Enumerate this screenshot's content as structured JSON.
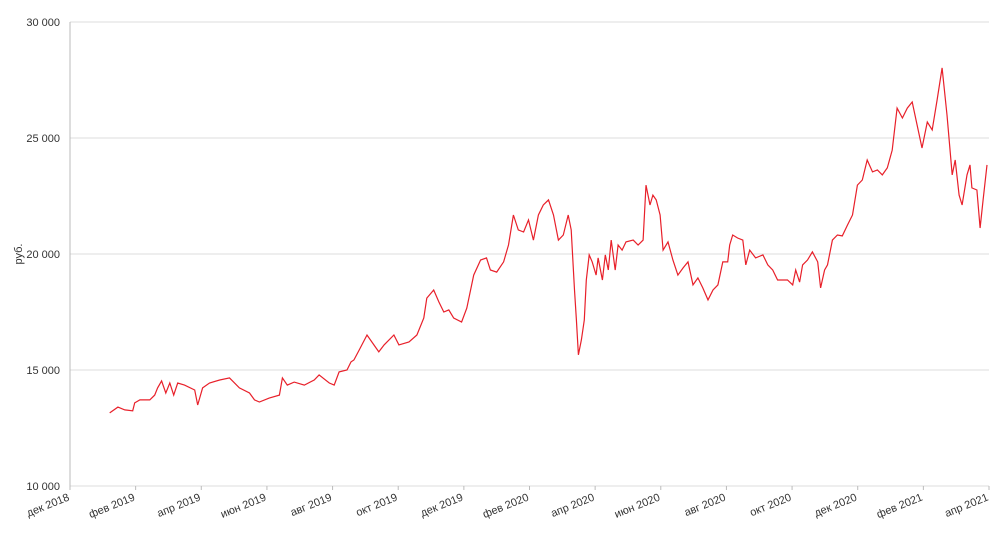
{
  "chart_data": {
    "type": "line",
    "ylabel": "руб.",
    "x": [
      1.21,
      1.46,
      1.67,
      1.91,
      1.97,
      2.13,
      2.43,
      2.58,
      2.67,
      2.79,
      2.92,
      3.04,
      3.16,
      3.28,
      3.49,
      3.8,
      3.89,
      4.04,
      4.25,
      4.56,
      4.86,
      5.16,
      5.47,
      5.62,
      5.77,
      6.07,
      6.38,
      6.47,
      6.62,
      6.83,
      7.14,
      7.44,
      7.59,
      7.9,
      8.05,
      8.2,
      8.44,
      8.56,
      8.65,
      8.81,
      9.05,
      9.26,
      9.41,
      9.57,
      9.87,
      10.02,
      10.33,
      10.57,
      10.78,
      10.87,
      11.08,
      11.24,
      11.39,
      11.54,
      11.69,
      11.93,
      12.09,
      12.3,
      12.51,
      12.69,
      12.81,
      13.0,
      13.21,
      13.36,
      13.51,
      13.66,
      13.82,
      13.97,
      14.12,
      14.27,
      14.42,
      14.58,
      14.73,
      14.88,
      15.03,
      15.18,
      15.27,
      15.37,
      15.43,
      15.49,
      15.58,
      15.67,
      15.73,
      15.82,
      15.91,
      16.03,
      16.09,
      16.22,
      16.31,
      16.4,
      16.49,
      16.61,
      16.7,
      16.82,
      16.94,
      17.16,
      17.31,
      17.46,
      17.55,
      17.67,
      17.76,
      17.86,
      17.98,
      18.07,
      18.22,
      18.37,
      18.52,
      18.68,
      18.83,
      18.98,
      19.13,
      19.28,
      19.44,
      19.59,
      19.74,
      19.89,
      20.04,
      20.1,
      20.19,
      20.34,
      20.5,
      20.59,
      20.71,
      20.89,
      21.11,
      21.26,
      21.41,
      21.56,
      21.86,
      22.02,
      22.11,
      22.23,
      22.32,
      22.47,
      22.62,
      22.78,
      22.87,
      22.99,
      23.08,
      23.23,
      23.38,
      23.53,
      23.69,
      23.84,
      23.99,
      24.14,
      24.29,
      24.45,
      24.6,
      24.75,
      24.9,
      25.05,
      25.2,
      25.36,
      25.51,
      25.66,
      25.81,
      25.96,
      26.12,
      26.27,
      26.42,
      26.57,
      26.72,
      26.88,
      26.97,
      27.09,
      27.18,
      27.33,
      27.42,
      27.48,
      27.63,
      27.73,
      27.82,
      27.94
    ],
    "series": [
      {
        "color": "#e8202a",
        "values": [
          13150,
          13400,
          13280,
          13240,
          13580,
          13710,
          13710,
          13920,
          14230,
          14530,
          14010,
          14440,
          13920,
          14440,
          14350,
          14140,
          13490,
          14230,
          14440,
          14570,
          14660,
          14230,
          14010,
          13710,
          13620,
          13790,
          13920,
          14660,
          14350,
          14480,
          14350,
          14570,
          14790,
          14440,
          14350,
          14920,
          15000,
          15350,
          15430,
          15860,
          16510,
          16080,
          15780,
          16080,
          16510,
          16080,
          16210,
          16510,
          17240,
          18100,
          18450,
          17930,
          17500,
          17590,
          17240,
          17070,
          17670,
          19090,
          19740,
          19830,
          19310,
          19220,
          19660,
          20390,
          21680,
          21040,
          20950,
          21470,
          20600,
          21680,
          22110,
          22330,
          21680,
          20600,
          20820,
          21680,
          21040,
          18450,
          17160,
          15650,
          16300,
          17160,
          18880,
          19960,
          19660,
          19090,
          19830,
          18880,
          19960,
          19310,
          20600,
          19310,
          20390,
          20170,
          20520,
          20600,
          20390,
          20600,
          22970,
          22110,
          22540,
          22330,
          21680,
          20170,
          20520,
          19740,
          19090,
          19400,
          19660,
          18670,
          18970,
          18540,
          18020,
          18450,
          18670,
          19660,
          19660,
          20390,
          20820,
          20690,
          20600,
          19530,
          20170,
          19830,
          19960,
          19530,
          19310,
          18880,
          18880,
          18670,
          19310,
          18790,
          19530,
          19740,
          20090,
          19660,
          18540,
          19310,
          19530,
          20600,
          20820,
          20780,
          21250,
          21680,
          22970,
          23190,
          24050,
          23540,
          23620,
          23410,
          23710,
          24480,
          26290,
          25860,
          26290,
          26550,
          25560,
          24570,
          25690,
          25350,
          26640,
          28020,
          25990,
          23410,
          24050,
          22540,
          22110,
          23410,
          23840,
          22850,
          22760,
          21120,
          22330,
          23840
        ]
      }
    ],
    "xlim": [
      0,
      28
    ],
    "xticks": [
      {
        "value": 0,
        "label": "дек 2018"
      },
      {
        "value": 2,
        "label": "фев 2019"
      },
      {
        "value": 4,
        "label": "апр 2019"
      },
      {
        "value": 6,
        "label": "июн 2019"
      },
      {
        "value": 8,
        "label": "авг 2019"
      },
      {
        "value": 10,
        "label": "окт 2019"
      },
      {
        "value": 12,
        "label": "дек 2019"
      },
      {
        "value": 14,
        "label": "фев 2020"
      },
      {
        "value": 16,
        "label": "апр 2020"
      },
      {
        "value": 18,
        "label": "июн 2020"
      },
      {
        "value": 20,
        "label": "авг 2020"
      },
      {
        "value": 22,
        "label": "окт 2020"
      },
      {
        "value": 24,
        "label": "дек 2020"
      },
      {
        "value": 26,
        "label": "фев 2021"
      },
      {
        "value": 28,
        "label": "апр 2021"
      }
    ],
    "ylim": [
      10000,
      30000
    ],
    "yticks": [
      {
        "value": 10000,
        "label": "10 000"
      },
      {
        "value": 15000,
        "label": "15 000"
      },
      {
        "value": 20000,
        "label": "20 000"
      },
      {
        "value": 25000,
        "label": "25 000"
      },
      {
        "value": 30000,
        "label": "30 000"
      }
    ],
    "grid": true
  }
}
